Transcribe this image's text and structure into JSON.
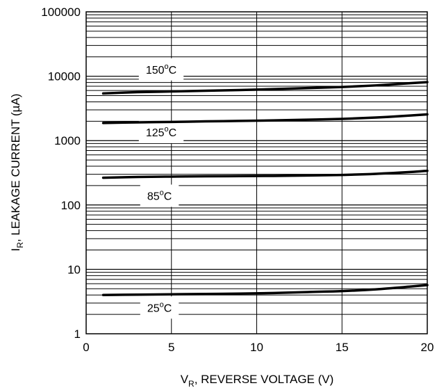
{
  "chart_data": {
    "type": "line",
    "title": "",
    "xlabel": {
      "main": "V",
      "sub": "R",
      "rest": ", REVERSE VOLTAGE (V)"
    },
    "ylabel": {
      "main": "I",
      "sub": "R",
      "rest": ", LEAKAGE CURRENT (µA)"
    },
    "xlim": [
      0,
      20
    ],
    "ylim": [
      1,
      100000
    ],
    "y_scale": "log",
    "grid": true,
    "x_ticks": [
      0,
      5,
      10,
      15,
      20
    ],
    "x_tick_labels": [
      "0",
      "5",
      "10",
      "15",
      "20"
    ],
    "y_ticks": [
      1,
      10,
      100,
      1000,
      10000,
      100000
    ],
    "y_tick_labels": [
      "1",
      "10",
      "100",
      "1000",
      "10000",
      "100000"
    ],
    "series": [
      {
        "name": "150°C",
        "label": {
          "main": "150",
          "sup": "o",
          "rest": "C",
          "anchor": [
            4.4,
            11000
          ]
        },
        "x": [
          1,
          3,
          5,
          7,
          9,
          11,
          13,
          15,
          17,
          19,
          20
        ],
        "y": [
          5400,
          5650,
          5800,
          5950,
          6100,
          6300,
          6550,
          6800,
          7200,
          7800,
          8100
        ]
      },
      {
        "name": "125°C",
        "label": {
          "main": "125",
          "sup": "o",
          "rest": "C",
          "anchor": [
            4.4,
            1170
          ]
        },
        "x": [
          1,
          3,
          5,
          7,
          9,
          11,
          13,
          15,
          17,
          19,
          20
        ],
        "y": [
          1880,
          1920,
          1950,
          1990,
          2020,
          2060,
          2110,
          2170,
          2280,
          2450,
          2550
        ]
      },
      {
        "name": "85°C",
        "label": {
          "main": "85",
          "sup": "o",
          "rest": "C",
          "anchor": [
            4.3,
            120
          ]
        },
        "x": [
          1,
          3,
          5,
          7,
          9,
          11,
          13,
          15,
          17,
          19,
          20
        ],
        "y": [
          265,
          272,
          276,
          279,
          281,
          283,
          287,
          293,
          305,
          325,
          340
        ]
      },
      {
        "name": "25°C",
        "label": {
          "main": "25",
          "sup": "o",
          "rest": "C",
          "anchor": [
            4.3,
            2.2
          ]
        },
        "x": [
          1,
          3,
          5,
          7,
          9,
          11,
          13,
          15,
          17,
          19,
          20
        ],
        "y": [
          4.0,
          4.05,
          4.1,
          4.15,
          4.2,
          4.3,
          4.45,
          4.6,
          4.9,
          5.4,
          5.7
        ]
      }
    ]
  }
}
